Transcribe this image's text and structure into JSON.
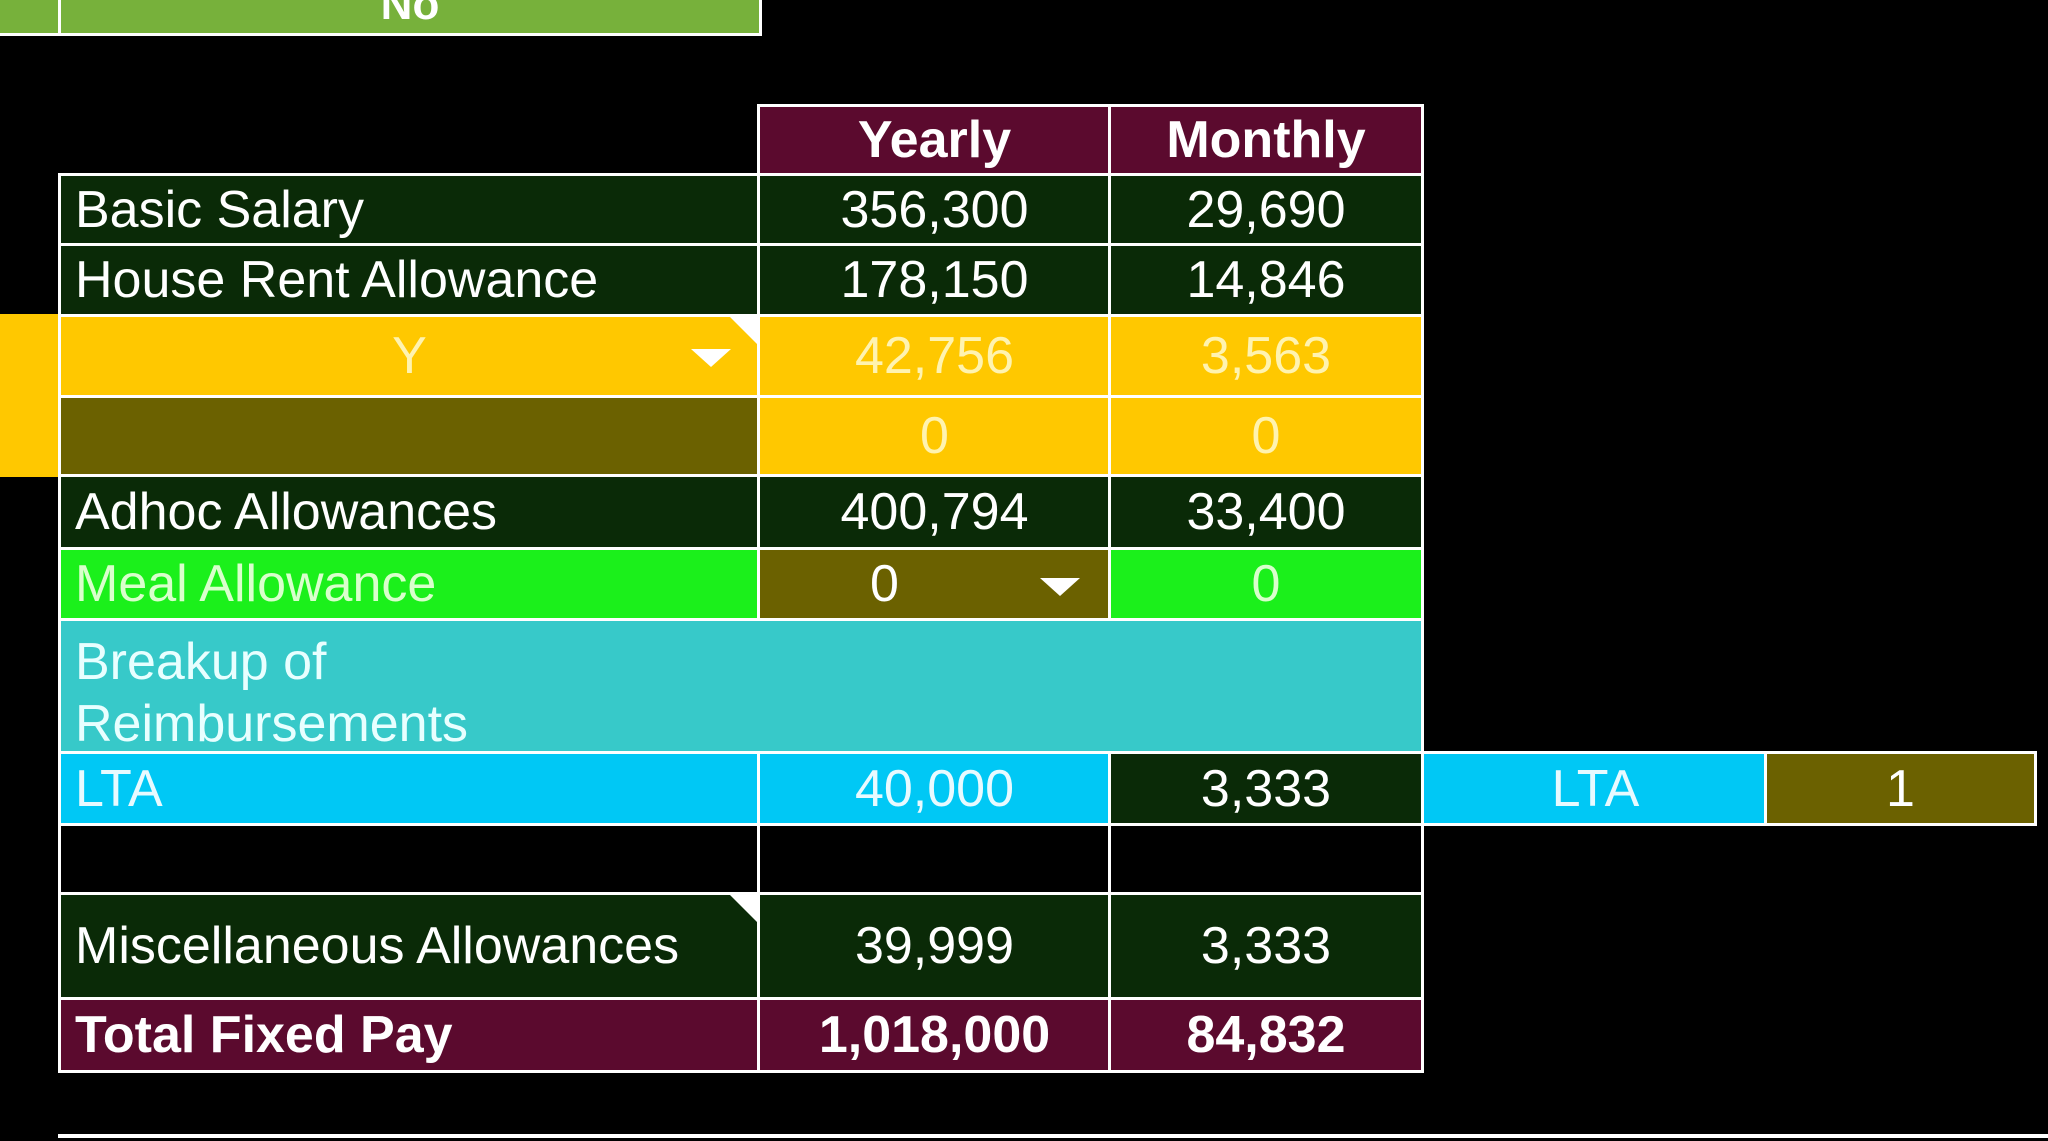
{
  "top_row": {
    "value": "No"
  },
  "headers": {
    "yearly": "Yearly",
    "monthly": "Monthly"
  },
  "rows": {
    "basic": {
      "label": "Basic Salary",
      "yearly": "356,300",
      "monthly": "29,690"
    },
    "hra": {
      "label": "House Rent Allowance",
      "yearly": "178,150",
      "monthly": "14,846"
    },
    "y_row": {
      "selector": "Y",
      "yearly": "42,756",
      "monthly": "3,563"
    },
    "blank_yellow": {
      "label": "",
      "yearly": "0",
      "monthly": "0"
    },
    "adhoc": {
      "label": "Adhoc Allowances",
      "yearly": "400,794",
      "monthly": "33,400"
    },
    "meal": {
      "label": "Meal Allowance",
      "yearly": "0",
      "monthly": "0"
    },
    "breakup": {
      "label": "Breakup of Reimbursements :-"
    },
    "lta": {
      "label": "LTA",
      "yearly": "40,000",
      "monthly": "3,333",
      "side_label": "LTA",
      "side_value": "1"
    },
    "misc": {
      "label": "Miscellaneous Allowances",
      "yearly": "39,999",
      "monthly": "3,333"
    },
    "total": {
      "label": "Total Fixed Pay",
      "yearly": "1,018,000",
      "monthly": "84,832"
    }
  },
  "colors": {
    "header": "#5b0a2e",
    "row_dark": "#0a2a07",
    "yellow": "#ffc800",
    "olive": "#6b6100",
    "lime": "#1bf01b",
    "teal": "#37c9c9",
    "cyan": "#00c8f5",
    "top_green": "#77b13b"
  },
  "icons": [
    "dropdown-arrow-icon",
    "comment-indicator-icon"
  ]
}
